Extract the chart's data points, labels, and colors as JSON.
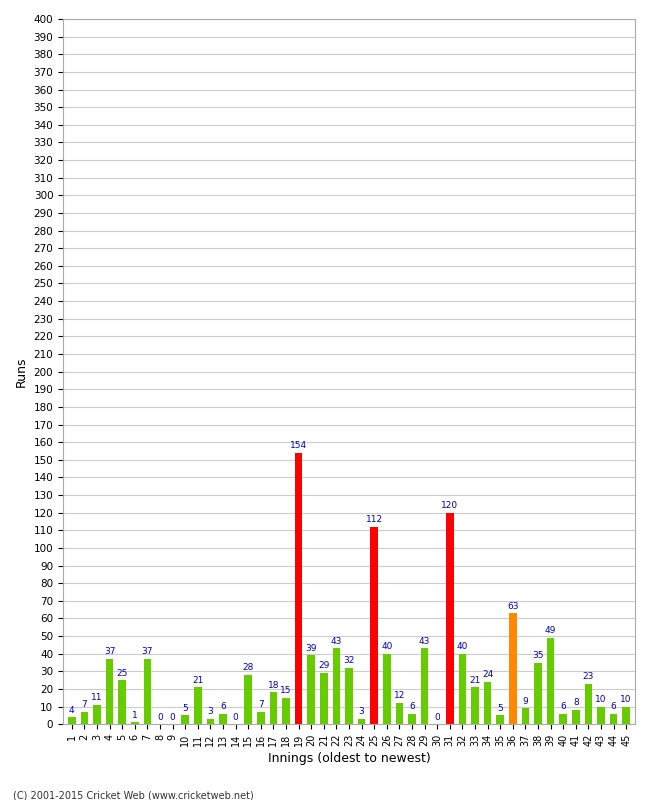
{
  "xlabel": "Innings (oldest to newest)",
  "ylabel": "Runs",
  "values": [
    4,
    7,
    11,
    37,
    25,
    1,
    37,
    0,
    0,
    5,
    21,
    3,
    6,
    0,
    28,
    7,
    18,
    15,
    154,
    39,
    29,
    43,
    32,
    3,
    112,
    40,
    12,
    6,
    43,
    0,
    120,
    40,
    21,
    24,
    5,
    63,
    9,
    35,
    49,
    6,
    8,
    23,
    10,
    6,
    10
  ],
  "colors": [
    "#66cc00",
    "#66cc00",
    "#66cc00",
    "#66cc00",
    "#66cc00",
    "#66cc00",
    "#66cc00",
    "#66cc00",
    "#66cc00",
    "#66cc00",
    "#66cc00",
    "#66cc00",
    "#66cc00",
    "#66cc00",
    "#66cc00",
    "#66cc00",
    "#66cc00",
    "#66cc00",
    "#ff0000",
    "#66cc00",
    "#66cc00",
    "#66cc00",
    "#66cc00",
    "#66cc00",
    "#ff0000",
    "#66cc00",
    "#66cc00",
    "#66cc00",
    "#66cc00",
    "#66cc00",
    "#ff0000",
    "#66cc00",
    "#66cc00",
    "#66cc00",
    "#66cc00",
    "#ff8800",
    "#66cc00",
    "#66cc00",
    "#66cc00",
    "#66cc00",
    "#66cc00",
    "#66cc00",
    "#66cc00",
    "#66cc00",
    "#66cc00"
  ],
  "labels": [
    "1",
    "2",
    "3",
    "4",
    "5",
    "6",
    "7",
    "8",
    "9",
    "10",
    "11",
    "12",
    "13",
    "14",
    "15",
    "16",
    "17",
    "18",
    "19",
    "20",
    "21",
    "22",
    "23",
    "24",
    "25",
    "26",
    "27",
    "28",
    "29",
    "30",
    "31",
    "32",
    "33",
    "34",
    "35",
    "36",
    "37",
    "38",
    "39",
    "40",
    "41",
    "42",
    "43",
    "44",
    "45"
  ],
  "ylim": [
    0,
    400
  ],
  "yticks": [
    0,
    10,
    20,
    30,
    40,
    50,
    60,
    70,
    80,
    90,
    100,
    110,
    120,
    130,
    140,
    150,
    160,
    170,
    180,
    190,
    200,
    210,
    220,
    230,
    240,
    250,
    260,
    270,
    280,
    290,
    300,
    310,
    320,
    330,
    340,
    350,
    360,
    370,
    380,
    390,
    400
  ],
  "footer": "(C) 2001-2015 Cricket Web (www.cricketweb.net)",
  "bg_color": "#ffffff",
  "grid_color": "#cccccc",
  "label_color": "#0000cc",
  "tick_label_color": "#000000",
  "bar_width": 0.6,
  "label_fontsize": 6.5,
  "ytick_fontsize": 7.5,
  "xtick_fontsize": 7.0,
  "axis_label_fontsize": 9.0,
  "footer_fontsize": 7.0
}
